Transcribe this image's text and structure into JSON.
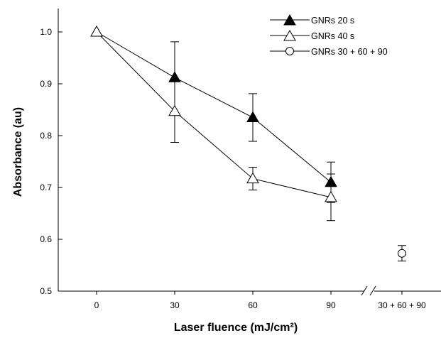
{
  "chart_data": {
    "type": "line",
    "xlabel": "Laser fluence (mJ/cm²)",
    "ylabel": "Absorbance (au)",
    "ylim": [
      0.5,
      1.05
    ],
    "yticks": [
      "0.5",
      "0.6",
      "0.7",
      "0.8",
      "0.9",
      "1.0"
    ],
    "categories": [
      "0",
      "30",
      "60",
      "90",
      "30 + 60 + 90"
    ],
    "axis_break": "between 90 and 30 + 60 + 90",
    "grid": false,
    "legend_position": "top-right",
    "series": [
      {
        "name": "GNRs 20 s",
        "marker": "filled-triangle",
        "x": [
          "0",
          "30",
          "60",
          "90"
        ],
        "values": [
          1.0,
          0.912,
          0.835,
          0.71
        ],
        "error": [
          0,
          0.069,
          0.046,
          0.039
        ]
      },
      {
        "name": "GNRs 40 s",
        "marker": "open-triangle",
        "x": [
          "0",
          "30",
          "60",
          "90"
        ],
        "values": [
          1.0,
          0.847,
          0.717,
          0.681
        ],
        "error": [
          0,
          0.06,
          0.022,
          0.045
        ]
      },
      {
        "name": "GNRs 30 + 60 + 90",
        "marker": "open-circle",
        "x": [
          "30 + 60 + 90"
        ],
        "values": [
          0.573
        ],
        "error": [
          0.015
        ]
      }
    ]
  }
}
